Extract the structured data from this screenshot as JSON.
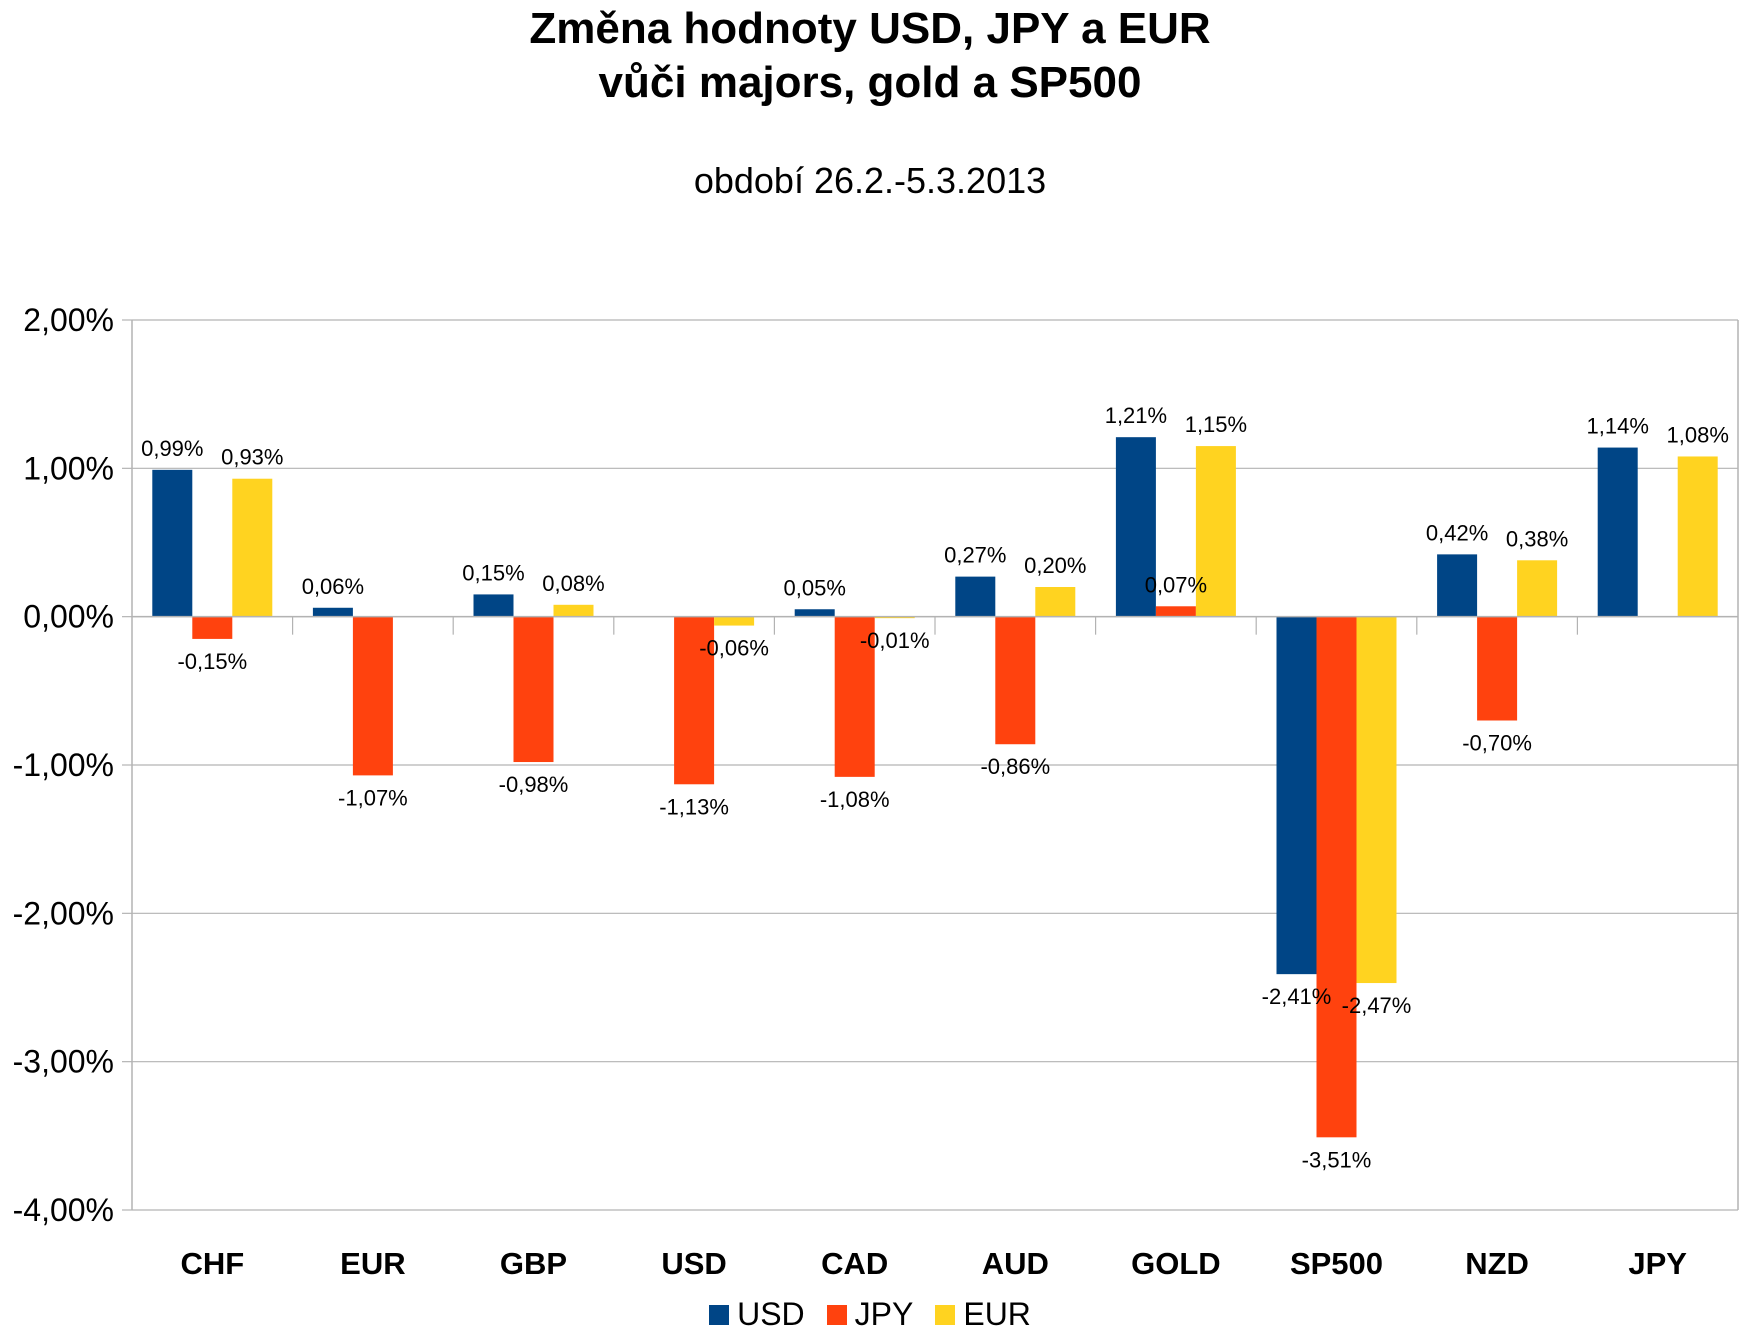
{
  "chart_data": {
    "type": "bar",
    "title_line1": "Změna hodnoty USD, JPY a EUR",
    "title_line2": "vůči majors, gold a SP500",
    "subtitle": "období 26.2.-5.3.2013",
    "categories": [
      "CHF",
      "EUR",
      "GBP",
      "USD",
      "CAD",
      "AUD",
      "GOLD",
      "SP500",
      "NZD",
      "JPY"
    ],
    "series": [
      {
        "name": "USD",
        "color": "#004586",
        "values": [
          0.99,
          0.06,
          0.15,
          null,
          0.05,
          0.27,
          1.21,
          -2.41,
          0.42,
          1.14
        ],
        "labels": [
          "0,99%",
          "0,06%",
          "0,15%",
          "",
          "0,05%",
          "0,27%",
          "1,21%",
          "-2,41%",
          "0,42%",
          "1,14%"
        ]
      },
      {
        "name": "JPY",
        "color": "#FF420E",
        "values": [
          -0.15,
          -1.07,
          -0.98,
          -1.13,
          -1.08,
          -0.86,
          0.07,
          -3.51,
          -0.7,
          null
        ],
        "labels": [
          "-0,15%",
          "-1,07%",
          "-0,98%",
          "-1,13%",
          "-1,08%",
          "-0,86%",
          "0,07%",
          "-3,51%",
          "-0,70%",
          ""
        ]
      },
      {
        "name": "EUR",
        "color": "#FFD320",
        "values": [
          0.93,
          null,
          0.08,
          -0.06,
          -0.01,
          0.2,
          1.15,
          -2.47,
          0.38,
          1.08
        ],
        "labels": [
          "0,93%",
          "",
          "0,08%",
          "-0,06%",
          "-0,01%",
          "0,20%",
          "1,15%",
          "-2,47%",
          "0,38%",
          "1,08%"
        ]
      }
    ],
    "yticks": [
      2,
      1,
      0,
      -1,
      -2,
      -3,
      -4
    ],
    "ytick_labels": [
      "2,00%",
      "1,00%",
      "0,00%",
      "-1,00%",
      "-2,00%",
      "-3,00%",
      "-4,00%"
    ],
    "ylim": [
      -4,
      2
    ],
    "grid": true,
    "legend_position": "bottom"
  }
}
